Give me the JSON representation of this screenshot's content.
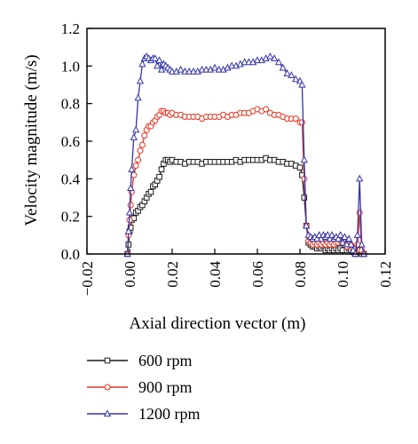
{
  "chart_data": {
    "type": "line",
    "xlabel": "Axial direction vector (m)",
    "ylabel": "Velocity magnitude (m/s)",
    "xlim": [
      -0.02,
      0.12
    ],
    "ylim": [
      0.0,
      1.2
    ],
    "x_ticks": [
      "−0.02",
      "0.00",
      "0.02",
      "0.04",
      "0.06",
      "0.08",
      "0.10",
      "0.12"
    ],
    "y_ticks": [
      "0.0",
      "0.2",
      "0.4",
      "0.6",
      "0.8",
      "1.0",
      "1.2"
    ],
    "legend_position": "below",
    "grid": false,
    "series": [
      {
        "name": "600 rpm",
        "color": "#1a1a1a",
        "marker": "square",
        "x": [
          -0.001,
          -0.0005,
          0.0,
          0.0005,
          0.001,
          0.002,
          0.003,
          0.004,
          0.005,
          0.006,
          0.007,
          0.008,
          0.009,
          0.01,
          0.011,
          0.012,
          0.013,
          0.014,
          0.015,
          0.016,
          0.017,
          0.018,
          0.019,
          0.02,
          0.022,
          0.024,
          0.026,
          0.028,
          0.03,
          0.032,
          0.034,
          0.036,
          0.038,
          0.04,
          0.042,
          0.044,
          0.046,
          0.048,
          0.05,
          0.052,
          0.054,
          0.056,
          0.058,
          0.06,
          0.062,
          0.064,
          0.066,
          0.068,
          0.07,
          0.072,
          0.074,
          0.076,
          0.078,
          0.08,
          0.081,
          0.082,
          0.083,
          0.084,
          0.085,
          0.086,
          0.087,
          0.088,
          0.089,
          0.09,
          0.091,
          0.092,
          0.093,
          0.094,
          0.095,
          0.096,
          0.097,
          0.098,
          0.099,
          0.1,
          0.101,
          0.102,
          0.103,
          0.104,
          0.105,
          0.106,
          0.107,
          0.108,
          0.109,
          0.11
        ],
        "y": [
          0.0,
          0.05,
          0.12,
          0.14,
          0.18,
          0.19,
          0.22,
          0.23,
          0.25,
          0.26,
          0.28,
          0.3,
          0.32,
          0.33,
          0.36,
          0.37,
          0.39,
          0.41,
          0.45,
          0.48,
          0.5,
          0.5,
          0.49,
          0.5,
          0.49,
          0.49,
          0.48,
          0.49,
          0.49,
          0.49,
          0.48,
          0.49,
          0.49,
          0.49,
          0.49,
          0.49,
          0.49,
          0.49,
          0.5,
          0.49,
          0.5,
          0.5,
          0.5,
          0.5,
          0.5,
          0.51,
          0.5,
          0.5,
          0.49,
          0.49,
          0.48,
          0.48,
          0.47,
          0.46,
          0.42,
          0.3,
          0.15,
          0.06,
          0.05,
          0.04,
          0.04,
          0.03,
          0.04,
          0.03,
          0.04,
          0.02,
          0.03,
          0.02,
          0.03,
          0.02,
          0.03,
          0.02,
          0.03,
          0.02,
          0.05,
          0.02,
          0.03,
          0.02,
          0.01,
          0.0,
          0.01,
          0.02,
          0.0,
          0.0
        ]
      },
      {
        "name": "900 rpm",
        "color": "#e8321e",
        "marker": "circle",
        "x": [
          -0.001,
          -0.0005,
          0.0,
          0.0005,
          0.001,
          0.002,
          0.003,
          0.004,
          0.005,
          0.006,
          0.007,
          0.008,
          0.009,
          0.01,
          0.011,
          0.012,
          0.013,
          0.014,
          0.015,
          0.016,
          0.017,
          0.018,
          0.019,
          0.02,
          0.022,
          0.024,
          0.026,
          0.028,
          0.03,
          0.032,
          0.034,
          0.036,
          0.038,
          0.04,
          0.042,
          0.044,
          0.046,
          0.048,
          0.05,
          0.052,
          0.054,
          0.056,
          0.058,
          0.06,
          0.062,
          0.064,
          0.066,
          0.068,
          0.07,
          0.072,
          0.074,
          0.076,
          0.078,
          0.08,
          0.081,
          0.082,
          0.083,
          0.084,
          0.085,
          0.086,
          0.087,
          0.088,
          0.089,
          0.09,
          0.091,
          0.092,
          0.093,
          0.094,
          0.095,
          0.096,
          0.097,
          0.098,
          0.099,
          0.1,
          0.101,
          0.102,
          0.103,
          0.104,
          0.105,
          0.106,
          0.107,
          0.108,
          0.109,
          0.11
        ],
        "y": [
          0.0,
          0.1,
          0.18,
          0.26,
          0.33,
          0.42,
          0.47,
          0.5,
          0.55,
          0.58,
          0.63,
          0.66,
          0.68,
          0.68,
          0.7,
          0.71,
          0.73,
          0.74,
          0.76,
          0.76,
          0.75,
          0.75,
          0.74,
          0.75,
          0.74,
          0.74,
          0.73,
          0.73,
          0.73,
          0.73,
          0.72,
          0.73,
          0.73,
          0.73,
          0.73,
          0.74,
          0.73,
          0.74,
          0.74,
          0.75,
          0.75,
          0.75,
          0.76,
          0.77,
          0.76,
          0.77,
          0.75,
          0.74,
          0.74,
          0.73,
          0.72,
          0.72,
          0.72,
          0.7,
          0.7,
          0.4,
          0.15,
          0.07,
          0.06,
          0.05,
          0.06,
          0.05,
          0.06,
          0.05,
          0.06,
          0.05,
          0.06,
          0.05,
          0.06,
          0.05,
          0.06,
          0.06,
          0.07,
          0.06,
          0.08,
          0.04,
          0.06,
          0.05,
          0.03,
          0.0,
          0.05,
          0.22,
          0.02,
          0.0
        ]
      },
      {
        "name": "1200 rpm",
        "color": "#3535a8",
        "marker": "triangle",
        "x": [
          -0.001,
          -0.0005,
          0.0,
          0.0005,
          0.001,
          0.002,
          0.003,
          0.004,
          0.005,
          0.006,
          0.007,
          0.008,
          0.009,
          0.01,
          0.011,
          0.012,
          0.013,
          0.014,
          0.015,
          0.016,
          0.017,
          0.018,
          0.019,
          0.02,
          0.022,
          0.024,
          0.026,
          0.028,
          0.03,
          0.032,
          0.034,
          0.036,
          0.038,
          0.04,
          0.042,
          0.044,
          0.046,
          0.048,
          0.05,
          0.052,
          0.054,
          0.056,
          0.058,
          0.06,
          0.062,
          0.064,
          0.066,
          0.068,
          0.07,
          0.072,
          0.074,
          0.076,
          0.078,
          0.08,
          0.081,
          0.082,
          0.083,
          0.084,
          0.085,
          0.086,
          0.087,
          0.088,
          0.089,
          0.09,
          0.091,
          0.092,
          0.093,
          0.094,
          0.095,
          0.096,
          0.097,
          0.098,
          0.099,
          0.1,
          0.101,
          0.102,
          0.103,
          0.104,
          0.105,
          0.106,
          0.107,
          0.108,
          0.109,
          0.11
        ],
        "y": [
          0.0,
          0.12,
          0.22,
          0.35,
          0.45,
          0.62,
          0.66,
          0.83,
          0.92,
          1.01,
          1.04,
          1.05,
          1.04,
          1.03,
          1.04,
          1.04,
          1.0,
          1.03,
          0.98,
          1.01,
          1.0,
          0.99,
          0.98,
          0.97,
          0.97,
          0.98,
          0.97,
          0.97,
          0.97,
          0.97,
          0.98,
          0.98,
          0.98,
          0.99,
          0.98,
          0.98,
          0.99,
          1.0,
          1.0,
          1.01,
          1.02,
          1.02,
          1.02,
          1.03,
          1.03,
          1.04,
          1.05,
          1.04,
          1.02,
          0.99,
          0.96,
          0.95,
          0.93,
          0.92,
          0.9,
          0.5,
          0.15,
          0.1,
          0.09,
          0.08,
          0.09,
          0.08,
          0.1,
          0.08,
          0.1,
          0.09,
          0.1,
          0.08,
          0.1,
          0.08,
          0.09,
          0.08,
          0.1,
          0.06,
          0.09,
          0.05,
          0.08,
          0.05,
          0.02,
          0.0,
          0.1,
          0.4,
          0.05,
          0.0
        ]
      }
    ]
  }
}
